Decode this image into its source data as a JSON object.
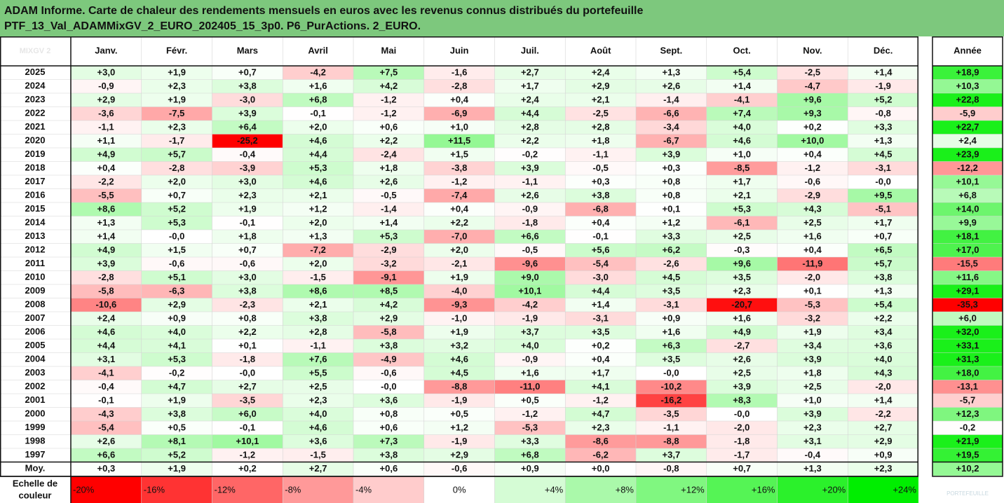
{
  "title_line1": "ADAM Informe. Carte de chaleur des rendements mensuels en euros avec les revenus connus distribués du portefeuille",
  "title_line2": "PTF_13_Val_ADAMMixGV_2_EURO_202405_15_3p0. P6_PurActions. 2_EURO.",
  "corner_label": "MIXGV 2",
  "watermark": "PORTEFEUILLE",
  "chart_data": {
    "type": "heatmap",
    "columns": [
      "Janv.",
      "Févr.",
      "Mars",
      "Avril",
      "Mai",
      "Juin",
      "Juil.",
      "Août",
      "Sept.",
      "Oct.",
      "Nov.",
      "Déc."
    ],
    "year_header": "Année",
    "rows": [
      {
        "label": "2025",
        "values": [
          "+3,0",
          "+1,9",
          "+0,7",
          "-4,2",
          "+7,5",
          "-1,6",
          "+2,7",
          "+2,4",
          "+1,3",
          "+5,4",
          "-2,5",
          "+1,4"
        ],
        "year": "+18,9"
      },
      {
        "label": "2024",
        "values": [
          "-0,9",
          "+2,3",
          "+3,8",
          "+1,6",
          "+4,2",
          "-2,8",
          "+1,7",
          "+2,9",
          "+2,6",
          "+1,4",
          "-4,7",
          "-1,9"
        ],
        "year": "+10,3"
      },
      {
        "label": "2023",
        "values": [
          "+2,9",
          "+1,9",
          "-3,0",
          "+6,8",
          "-1,2",
          "+0,4",
          "+2,4",
          "+2,1",
          "-1,4",
          "-4,1",
          "+9,6",
          "+5,2"
        ],
        "year": "+22,8"
      },
      {
        "label": "2022",
        "values": [
          "-3,6",
          "-7,5",
          "+3,9",
          "-0,1",
          "-1,2",
          "-6,9",
          "+4,4",
          "-2,5",
          "-6,6",
          "+7,4",
          "+9,3",
          "-0,8"
        ],
        "year": "-5,9"
      },
      {
        "label": "2021",
        "values": [
          "-1,1",
          "+2,3",
          "+6,4",
          "+2,0",
          "+0,6",
          "+1,0",
          "+2,8",
          "+2,8",
          "-3,4",
          "+4,0",
          "+0,2",
          "+3,3"
        ],
        "year": "+22,7"
      },
      {
        "label": "2020",
        "values": [
          "+1,1",
          "-1,7",
          "-25,2",
          "+4,6",
          "+2,2",
          "+11,5",
          "+2,2",
          "+1,8",
          "-6,7",
          "+4,6",
          "+10,0",
          "+1,3"
        ],
        "year": "+2,4"
      },
      {
        "label": "2019",
        "values": [
          "+4,9",
          "+5,7",
          "-0,4",
          "+4,4",
          "-2,4",
          "+1,5",
          "-0,2",
          "-1,1",
          "+3,9",
          "+1,0",
          "+0,4",
          "+4,5"
        ],
        "year": "+23,9"
      },
      {
        "label": "2018",
        "values": [
          "+0,4",
          "-2,8",
          "-3,9",
          "+5,3",
          "+1,8",
          "-3,8",
          "+3,9",
          "-0,5",
          "+0,3",
          "-8,5",
          "-1,2",
          "-3,1"
        ],
        "year": "-12,2"
      },
      {
        "label": "2017",
        "values": [
          "-2,2",
          "+2,0",
          "+3,0",
          "+4,6",
          "+2,6",
          "-1,2",
          "-1,1",
          "+0,3",
          "+0,8",
          "+1,7",
          "-0,6",
          "-0,0"
        ],
        "year": "+10,1"
      },
      {
        "label": "2016",
        "values": [
          "-5,5",
          "+0,7",
          "+2,3",
          "+2,1",
          "-0,5",
          "-7,4",
          "+2,6",
          "+3,8",
          "+0,8",
          "+2,1",
          "-2,9",
          "+9,5"
        ],
        "year": "+6,8"
      },
      {
        "label": "2015",
        "values": [
          "+8,6",
          "+5,2",
          "+1,9",
          "+1,2",
          "-1,4",
          "+0,4",
          "-0,9",
          "-6,8",
          "+0,1",
          "+5,3",
          "+4,3",
          "-5,1"
        ],
        "year": "+14,0"
      },
      {
        "label": "2014",
        "values": [
          "+1,3",
          "+5,3",
          "-0,1",
          "+2,0",
          "+1,4",
          "+2,2",
          "-1,8",
          "+0,4",
          "+1,2",
          "-6,1",
          "+2,5",
          "+1,7"
        ],
        "year": "+9,9"
      },
      {
        "label": "2013",
        "values": [
          "+1,4",
          "-0,0",
          "+1,8",
          "+1,3",
          "+5,3",
          "-7,0",
          "+6,6",
          "-0,1",
          "+3,3",
          "+2,5",
          "+1,6",
          "+0,7"
        ],
        "year": "+18,1"
      },
      {
        "label": "2012",
        "values": [
          "+4,9",
          "+1,5",
          "+0,7",
          "-7,2",
          "-2,9",
          "+2,0",
          "-0,5",
          "+5,6",
          "+6,2",
          "-0,3",
          "+0,4",
          "+6,5"
        ],
        "year": "+17,0"
      },
      {
        "label": "2011",
        "values": [
          "+3,9",
          "-0,6",
          "-0,6",
          "+2,0",
          "-3,2",
          "-2,1",
          "-9,6",
          "-5,4",
          "-2,6",
          "+9,6",
          "-11,9",
          "+5,7"
        ],
        "year": "-15,5"
      },
      {
        "label": "2010",
        "values": [
          "-2,8",
          "+5,1",
          "+3,0",
          "-1,5",
          "-9,1",
          "+1,9",
          "+9,0",
          "-3,0",
          "+4,5",
          "+3,5",
          "-2,0",
          "+3,8"
        ],
        "year": "+11,6"
      },
      {
        "label": "2009",
        "values": [
          "-5,8",
          "-6,3",
          "+3,8",
          "+8,6",
          "+8,5",
          "-4,0",
          "+10,1",
          "+4,4",
          "+3,5",
          "+2,3",
          "+0,1",
          "+1,3"
        ],
        "year": "+29,1"
      },
      {
        "label": "2008",
        "values": [
          "-10,6",
          "+2,9",
          "-2,3",
          "+2,1",
          "+4,2",
          "-9,3",
          "-4,2",
          "+1,4",
          "-3,1",
          "-20,7",
          "-5,3",
          "+5,4"
        ],
        "year": "-35,3"
      },
      {
        "label": "2007",
        "values": [
          "+2,4",
          "+0,9",
          "+0,8",
          "+3,8",
          "+2,9",
          "-1,0",
          "-1,9",
          "-3,1",
          "+0,9",
          "+1,6",
          "-3,2",
          "+2,2"
        ],
        "year": "+6,0"
      },
      {
        "label": "2006",
        "values": [
          "+4,6",
          "+4,0",
          "+2,2",
          "+2,8",
          "-5,8",
          "+1,9",
          "+3,7",
          "+3,5",
          "+1,6",
          "+4,9",
          "+1,9",
          "+3,4"
        ],
        "year": "+32,0"
      },
      {
        "label": "2005",
        "values": [
          "+4,4",
          "+4,1",
          "+0,1",
          "-1,1",
          "+3,8",
          "+3,2",
          "+4,0",
          "+0,2",
          "+6,3",
          "-2,7",
          "+3,4",
          "+3,6"
        ],
        "year": "+33,1"
      },
      {
        "label": "2004",
        "values": [
          "+3,1",
          "+5,3",
          "-1,8",
          "+7,6",
          "-4,9",
          "+4,6",
          "-0,9",
          "+0,4",
          "+3,5",
          "+2,6",
          "+3,9",
          "+4,0"
        ],
        "year": "+31,3"
      },
      {
        "label": "2003",
        "values": [
          "-4,1",
          "-0,2",
          "-0,0",
          "+5,5",
          "-0,6",
          "+4,5",
          "+1,6",
          "+1,7",
          "-0,0",
          "+2,5",
          "+1,8",
          "+4,3"
        ],
        "year": "+18,0"
      },
      {
        "label": "2002",
        "values": [
          "-0,4",
          "+4,7",
          "+2,7",
          "+2,5",
          "-0,0",
          "-8,8",
          "-11,0",
          "+4,1",
          "-10,2",
          "+3,9",
          "+2,5",
          "-2,0"
        ],
        "year": "-13,1"
      },
      {
        "label": "2001",
        "values": [
          "-0,1",
          "+1,9",
          "-3,5",
          "+2,3",
          "+3,6",
          "-1,9",
          "+0,5",
          "-1,2",
          "-16,2",
          "+8,3",
          "+1,0",
          "+1,4"
        ],
        "year": "-5,7"
      },
      {
        "label": "2000",
        "values": [
          "-4,3",
          "+3,8",
          "+6,0",
          "+4,0",
          "+0,8",
          "+0,5",
          "-1,2",
          "+4,7",
          "-3,5",
          "-0,0",
          "+3,9",
          "-2,2"
        ],
        "year": "+12,3"
      },
      {
        "label": "1999",
        "values": [
          "-5,4",
          "+0,5",
          "-0,1",
          "+4,6",
          "+0,6",
          "+1,2",
          "-5,3",
          "+2,3",
          "-1,1",
          "-2,0",
          "+2,3",
          "+2,7"
        ],
        "year": "-0,2"
      },
      {
        "label": "1998",
        "values": [
          "+2,6",
          "+8,1",
          "+10,1",
          "+3,6",
          "+7,3",
          "-1,9",
          "+3,3",
          "-8,6",
          "-8,8",
          "-1,8",
          "+3,1",
          "+2,9"
        ],
        "year": "+21,9"
      },
      {
        "label": "1997",
        "values": [
          "+6,6",
          "+5,2",
          "-1,2",
          "-1,5",
          "+3,8",
          "+2,9",
          "+6,8",
          "-6,2",
          "+3,7",
          "-1,7",
          "-0,4",
          "+0,9"
        ],
        "year": "+19,5"
      }
    ],
    "average": {
      "label": "Moy.",
      "values": [
        "+0,3",
        "+1,9",
        "+0,2",
        "+2,7",
        "+0,6",
        "-0,6",
        "+0,9",
        "+0,0",
        "-0,8",
        "+0,7",
        "+1,3",
        "+2,3"
      ],
      "year": "+10,2"
    },
    "scale": {
      "label_line1": "Echelle de",
      "label_line2": "couleur",
      "values": [
        -20,
        -16,
        -12,
        -8,
        -4,
        0,
        4,
        8,
        12,
        16,
        20,
        24
      ],
      "labels": [
        "-20%",
        "-16%",
        "-12%",
        "-8%",
        "-4%",
        "0%",
        "+4%",
        "+8%",
        "+12%",
        "+16%",
        "+20%",
        "+24%"
      ]
    },
    "colors": {
      "negative": "#ff0000",
      "positive": "#00ee00",
      "neutral": "#ffffff",
      "title_bg": "#7dc87d"
    }
  }
}
